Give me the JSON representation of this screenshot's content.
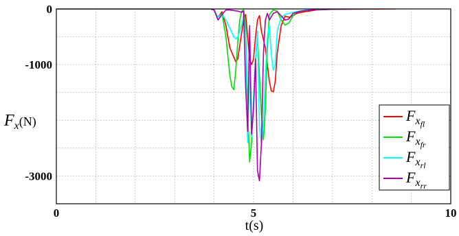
{
  "chart_data": {
    "type": "line",
    "title": "",
    "xlabel": "t(s)",
    "ylabel": "F",
    "ylabel_sub": "x",
    "ylabel_unit": "(N)",
    "xlim": [
      0,
      10
    ],
    "ylim": [
      -3500,
      0
    ],
    "xticks": [
      0,
      5,
      10
    ],
    "yticks": [
      0,
      -1000,
      -2000,
      -3000
    ],
    "ytick_labels": [
      "0",
      "-1000",
      "",
      "-3000"
    ],
    "grid": true,
    "legend_position": "right-center",
    "series": [
      {
        "name": "F",
        "sub": "x",
        "subsub": "fl",
        "color": "#ff0000",
        "points": [
          [
            0,
            0
          ],
          [
            3.9,
            0
          ],
          [
            4.0,
            -20
          ],
          [
            4.1,
            -150
          ],
          [
            4.2,
            -50
          ],
          [
            4.3,
            -300
          ],
          [
            4.4,
            -700
          ],
          [
            4.5,
            -870
          ],
          [
            4.55,
            -950
          ],
          [
            4.6,
            -900
          ],
          [
            4.7,
            -420
          ],
          [
            4.75,
            -200
          ],
          [
            4.8,
            -100
          ],
          [
            4.9,
            -900
          ],
          [
            4.95,
            -1000
          ],
          [
            5.0,
            -900
          ],
          [
            5.05,
            -500
          ],
          [
            5.1,
            -200
          ],
          [
            5.15,
            -120
          ],
          [
            5.2,
            -400
          ],
          [
            5.3,
            -700
          ],
          [
            5.4,
            -1300
          ],
          [
            5.45,
            -1470
          ],
          [
            5.5,
            -1490
          ],
          [
            5.55,
            -1300
          ],
          [
            5.6,
            -800
          ],
          [
            5.7,
            -300
          ],
          [
            5.8,
            -130
          ],
          [
            5.9,
            -150
          ],
          [
            6.0,
            -120
          ],
          [
            6.1,
            -80
          ],
          [
            6.3,
            -50
          ],
          [
            6.6,
            -20
          ],
          [
            7.0,
            -10
          ],
          [
            7.5,
            -5
          ],
          [
            8.6,
            0
          ]
        ]
      },
      {
        "name": "F",
        "sub": "x",
        "subsub": "fr",
        "color": "#00dd00",
        "points": [
          [
            0,
            0
          ],
          [
            3.9,
            0
          ],
          [
            4.0,
            -20
          ],
          [
            4.1,
            -150
          ],
          [
            4.2,
            -80
          ],
          [
            4.3,
            -500
          ],
          [
            4.4,
            -1200
          ],
          [
            4.45,
            -1400
          ],
          [
            4.5,
            -1450
          ],
          [
            4.55,
            -1100
          ],
          [
            4.6,
            -600
          ],
          [
            4.65,
            -200
          ],
          [
            4.7,
            -40
          ],
          [
            4.75,
            -20
          ],
          [
            4.8,
            -300
          ],
          [
            4.85,
            -1800
          ],
          [
            4.9,
            -2750
          ],
          [
            4.95,
            -2400
          ],
          [
            5.0,
            -1600
          ],
          [
            5.05,
            -900
          ],
          [
            5.1,
            -500
          ],
          [
            5.15,
            -1200
          ],
          [
            5.2,
            -1900
          ],
          [
            5.25,
            -2350
          ],
          [
            5.3,
            -1800
          ],
          [
            5.35,
            -700
          ],
          [
            5.4,
            -100
          ],
          [
            5.5,
            -20
          ],
          [
            5.6,
            -40
          ],
          [
            5.7,
            -200
          ],
          [
            5.8,
            -290
          ],
          [
            5.9,
            -250
          ],
          [
            6.0,
            -120
          ],
          [
            6.1,
            -60
          ],
          [
            6.4,
            -20
          ],
          [
            7.0,
            -5
          ],
          [
            8.0,
            0
          ]
        ]
      },
      {
        "name": "F",
        "sub": "x",
        "subsub": "rl",
        "color": "#00ffff",
        "points": [
          [
            0,
            0
          ],
          [
            3.9,
            0
          ],
          [
            4.0,
            -20
          ],
          [
            4.1,
            -150
          ],
          [
            4.2,
            -100
          ],
          [
            4.3,
            -200
          ],
          [
            4.4,
            -350
          ],
          [
            4.5,
            -500
          ],
          [
            4.55,
            -540
          ],
          [
            4.6,
            -500
          ],
          [
            4.7,
            -300
          ],
          [
            4.75,
            -100
          ],
          [
            4.8,
            -500
          ],
          [
            4.85,
            -2400
          ],
          [
            4.9,
            -1000
          ],
          [
            4.95,
            -2300
          ],
          [
            5.0,
            -1600
          ],
          [
            5.05,
            -900
          ],
          [
            5.1,
            -400
          ],
          [
            5.15,
            -2100
          ],
          [
            5.2,
            -2450
          ],
          [
            5.25,
            -2000
          ],
          [
            5.3,
            -1200
          ],
          [
            5.35,
            -500
          ],
          [
            5.4,
            -300
          ],
          [
            5.45,
            -800
          ],
          [
            5.5,
            -1100
          ],
          [
            5.55,
            -1000
          ],
          [
            5.6,
            -400
          ],
          [
            5.7,
            -150
          ],
          [
            5.8,
            -100
          ],
          [
            6.0,
            -60
          ],
          [
            6.3,
            -20
          ],
          [
            7.0,
            -5
          ],
          [
            8.0,
            0
          ]
        ]
      },
      {
        "name": "F",
        "sub": "x",
        "subsub": "rr",
        "color": "#aa00aa",
        "points": [
          [
            0,
            0
          ],
          [
            3.9,
            0
          ],
          [
            4.0,
            -20
          ],
          [
            4.1,
            -200
          ],
          [
            4.2,
            -100
          ],
          [
            4.3,
            -20
          ],
          [
            4.4,
            -20
          ],
          [
            4.5,
            -30
          ],
          [
            4.6,
            -40
          ],
          [
            4.7,
            -60
          ],
          [
            4.75,
            -40
          ],
          [
            4.8,
            -1400
          ],
          [
            4.85,
            -2200
          ],
          [
            4.9,
            -300
          ],
          [
            4.95,
            -2250
          ],
          [
            5.0,
            -1800
          ],
          [
            5.05,
            -900
          ],
          [
            5.1,
            -2900
          ],
          [
            5.15,
            -3090
          ],
          [
            5.2,
            -2400
          ],
          [
            5.25,
            -800
          ],
          [
            5.3,
            -200
          ],
          [
            5.35,
            -80
          ],
          [
            5.4,
            -200
          ],
          [
            5.5,
            -80
          ],
          [
            5.6,
            -50
          ],
          [
            5.8,
            -200
          ],
          [
            5.9,
            -180
          ],
          [
            6.0,
            -80
          ],
          [
            6.2,
            -40
          ],
          [
            6.6,
            -10
          ],
          [
            7.0,
            -3
          ],
          [
            8.0,
            0
          ]
        ]
      }
    ]
  }
}
